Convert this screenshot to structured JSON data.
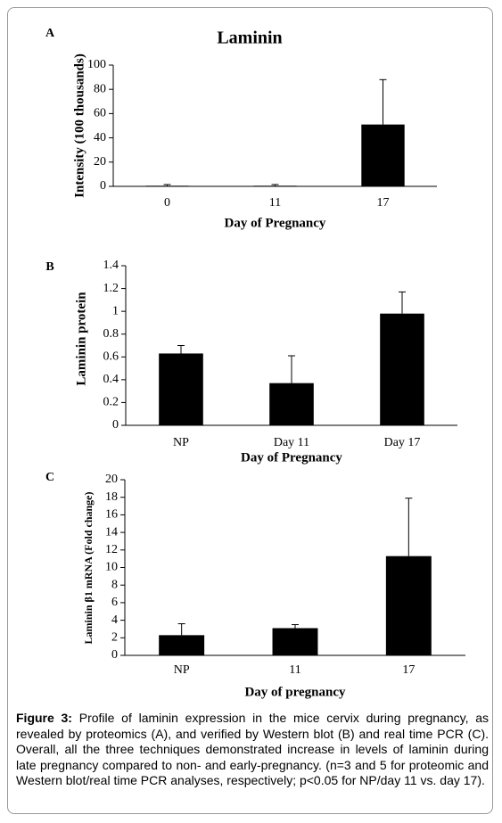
{
  "chart_data": [
    {
      "type": "bar",
      "panel_label": "A",
      "title": "Laminin",
      "x_label": "Day of Pregnancy",
      "y_label": "Intensity (100 thousands)",
      "categories": [
        "0",
        "11",
        "17"
      ],
      "values": [
        0.5,
        0.5,
        51
      ],
      "errors": [
        1,
        1,
        37
      ],
      "color": "#000000",
      "ylim": [
        0,
        100
      ],
      "yticks": [
        0,
        20,
        40,
        60,
        80,
        100
      ]
    },
    {
      "type": "bar",
      "panel_label": "B",
      "x_label": "Day of Pregnancy",
      "y_label": "Laminin protein",
      "categories": [
        "NP",
        "Day 11",
        "Day 17"
      ],
      "values": [
        0.63,
        0.37,
        0.98
      ],
      "errors": [
        0.07,
        0.24,
        0.19
      ],
      "color": "#000000",
      "ylim": [
        0,
        1.4
      ],
      "yticks": [
        0,
        0.2,
        0.4,
        0.6,
        0.8,
        1,
        1.2,
        1.4
      ]
    },
    {
      "type": "bar",
      "panel_label": "C",
      "x_label": "Day of pregnancy",
      "y_label": "Laminin β1 mRNA (Fold change)",
      "categories": [
        "NP",
        "11",
        "17"
      ],
      "values": [
        2.3,
        3.1,
        11.3
      ],
      "errors": [
        1.3,
        0.4,
        6.6
      ],
      "color": "#000000",
      "ylim": [
        0,
        20
      ],
      "yticks": [
        0,
        2,
        4,
        6,
        8,
        10,
        12,
        14,
        16,
        18,
        20
      ]
    }
  ],
  "caption": {
    "label": "Figure 3:",
    "text": "Profile of laminin expression in the mice cervix during pregnancy, as revealed by proteomics (A), and verified by Western blot (B) and real time PCR (C). Overall, all the three techniques demonstrated increase in levels of laminin during late pregnancy compared to non- and early-pregnancy. (n=3 and 5 for proteomic and Western blot/real time PCR analyses, respectively; p<0.05 for NP/day 11 vs. day 17)."
  }
}
